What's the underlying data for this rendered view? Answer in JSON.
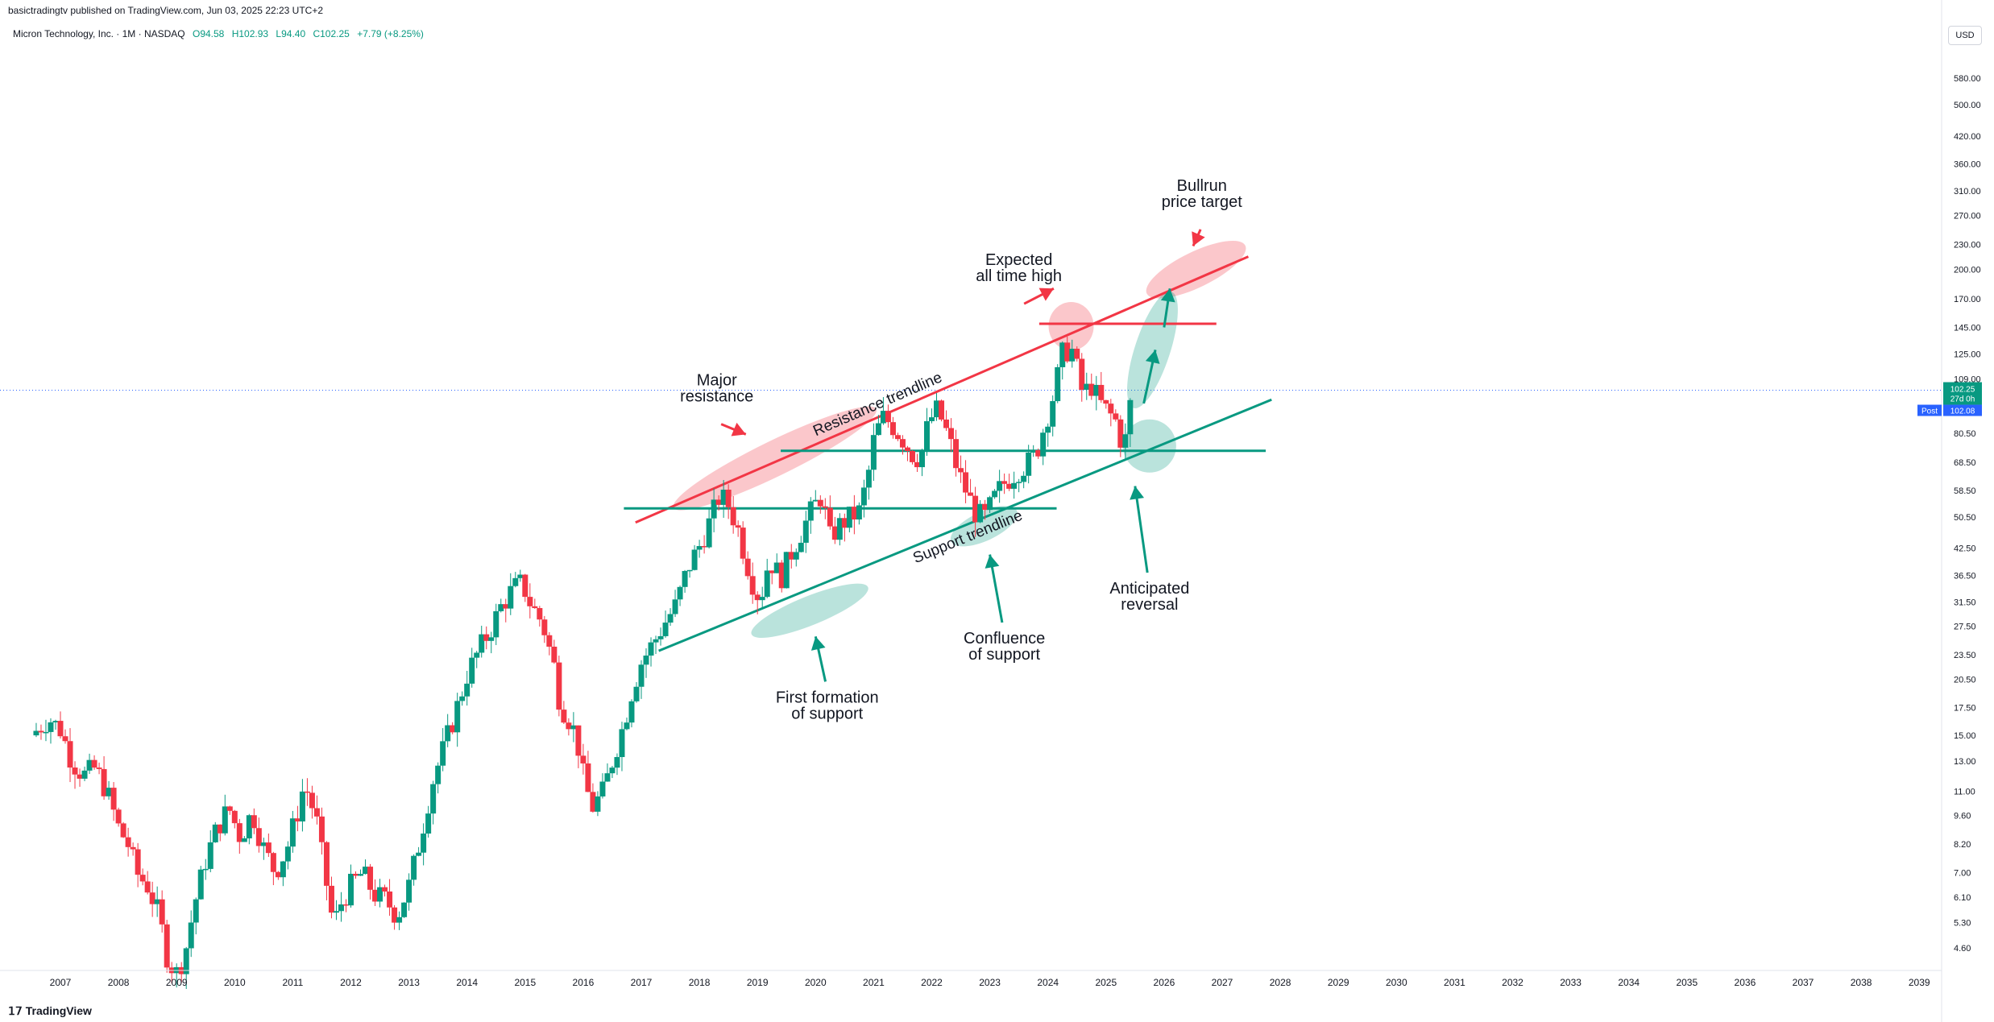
{
  "header": {
    "publisher": "basictradingtv published on TradingView.com, Jun 03, 2025 22:23 UTC+2",
    "symbol": "Micron Technology, Inc. · 1M · NASDAQ",
    "open": "O94.58",
    "high": "H102.93",
    "low": "L94.40",
    "close": "C102.25",
    "change": "+7.79 (+8.25%)"
  },
  "footer": {
    "logo": "TradingView"
  },
  "price_axis": {
    "currency": "USD",
    "current_price": "102.25",
    "countdown": "27d 0h",
    "post_label": "Post",
    "post_price": "102.08"
  },
  "colors": {
    "up": "#089981",
    "down": "#f23645",
    "resistance": "#f23645",
    "support": "#089981"
  },
  "chart_data": {
    "type": "candlestick",
    "symbol": "Micron Technology, Inc.",
    "interval": "1M",
    "exchange": "NASDAQ",
    "y_scale": "log",
    "y_tick_labels": [
      "580.00",
      "500.00",
      "420.00",
      "360.00",
      "310.00",
      "270.00",
      "230.00",
      "200.00",
      "170.00",
      "145.00",
      "125.00",
      "109.00",
      "80.50",
      "68.50",
      "58.50",
      "50.50",
      "42.50",
      "36.50",
      "31.50",
      "27.50",
      "23.50",
      "20.50",
      "17.50",
      "15.00",
      "13.00",
      "11.00",
      "9.60",
      "8.20",
      "7.00",
      "6.10",
      "5.30",
      "4.60"
    ],
    "x_tick_labels": [
      "2007",
      "2008",
      "2009",
      "2010",
      "2011",
      "2012",
      "2013",
      "2014",
      "2015",
      "2016",
      "2017",
      "2018",
      "2019",
      "2020",
      "2021",
      "2022",
      "2023",
      "2024",
      "2025",
      "2026",
      "2027",
      "2028",
      "2029",
      "2030",
      "2031",
      "2032",
      "2033",
      "2034",
      "2035",
      "2036",
      "2037",
      "2038",
      "2039"
    ],
    "price_path": [
      [
        2006.5,
        15.0
      ],
      [
        2006.8,
        16.5
      ],
      [
        2007.0,
        15.5
      ],
      [
        2007.2,
        13.0
      ],
      [
        2007.4,
        12.0
      ],
      [
        2007.6,
        12.5
      ],
      [
        2007.8,
        11.0
      ],
      [
        2008.0,
        9.0
      ],
      [
        2008.2,
        8.0
      ],
      [
        2008.3,
        7.0
      ],
      [
        2008.5,
        6.5
      ],
      [
        2008.7,
        5.5
      ],
      [
        2008.85,
        4.3
      ],
      [
        2009.0,
        4.0
      ],
      [
        2009.15,
        4.5
      ],
      [
        2009.3,
        5.8
      ],
      [
        2009.5,
        7.5
      ],
      [
        2009.7,
        9.0
      ],
      [
        2009.9,
        10.0
      ],
      [
        2010.1,
        8.5
      ],
      [
        2010.3,
        9.8
      ],
      [
        2010.5,
        8.0
      ],
      [
        2010.7,
        7.0
      ],
      [
        2010.9,
        8.0
      ],
      [
        2011.1,
        10.0
      ],
      [
        2011.2,
        11.5
      ],
      [
        2011.4,
        9.5
      ],
      [
        2011.55,
        7.0
      ],
      [
        2011.7,
        5.2
      ],
      [
        2011.85,
        6.0
      ],
      [
        2012.0,
        6.5
      ],
      [
        2012.2,
        7.0
      ],
      [
        2012.4,
        6.2
      ],
      [
        2012.6,
        6.0
      ],
      [
        2012.8,
        5.5
      ],
      [
        2013.0,
        6.5
      ],
      [
        2013.2,
        8.5
      ],
      [
        2013.4,
        11.5
      ],
      [
        2013.6,
        14.0
      ],
      [
        2013.8,
        17.0
      ],
      [
        2014.0,
        21.0
      ],
      [
        2014.2,
        24.0
      ],
      [
        2014.4,
        27.0
      ],
      [
        2014.6,
        31.0
      ],
      [
        2014.8,
        34.0
      ],
      [
        2014.95,
        35.0
      ],
      [
        2015.1,
        31.0
      ],
      [
        2015.3,
        28.0
      ],
      [
        2015.5,
        22.0
      ],
      [
        2015.6,
        18.0
      ],
      [
        2015.8,
        16.0
      ],
      [
        2015.9,
        14.5
      ],
      [
        2016.0,
        12.0
      ],
      [
        2016.15,
        10.0
      ],
      [
        2016.35,
        11.0
      ],
      [
        2016.5,
        13.0
      ],
      [
        2016.7,
        16.0
      ],
      [
        2016.85,
        19.5
      ],
      [
        2017.0,
        22.5
      ],
      [
        2017.2,
        25.0
      ],
      [
        2017.4,
        28.0
      ],
      [
        2017.6,
        31.0
      ],
      [
        2017.8,
        38.0
      ],
      [
        2018.0,
        43.0
      ],
      [
        2018.2,
        50.0
      ],
      [
        2018.35,
        57.0
      ],
      [
        2018.5,
        54.0
      ],
      [
        2018.65,
        48.0
      ],
      [
        2018.8,
        40.0
      ],
      [
        2018.95,
        34.0
      ],
      [
        2019.05,
        32.0
      ],
      [
        2019.2,
        40.0
      ],
      [
        2019.4,
        36.0
      ],
      [
        2019.6,
        42.0
      ],
      [
        2019.8,
        48.0
      ],
      [
        2019.95,
        53.0
      ],
      [
        2020.1,
        57.0
      ],
      [
        2020.25,
        45.0
      ],
      [
        2020.4,
        48.0
      ],
      [
        2020.55,
        50.0
      ],
      [
        2020.75,
        52.0
      ],
      [
        2020.9,
        63.0
      ],
      [
        2021.0,
        77.0
      ],
      [
        2021.15,
        88.0
      ],
      [
        2021.3,
        85.0
      ],
      [
        2021.5,
        78.0
      ],
      [
        2021.65,
        72.0
      ],
      [
        2021.8,
        70.0
      ],
      [
        2021.95,
        86.0
      ],
      [
        2022.1,
        92.0
      ],
      [
        2022.3,
        78.0
      ],
      [
        2022.45,
        65.0
      ],
      [
        2022.6,
        58.0
      ],
      [
        2022.75,
        52.0
      ],
      [
        2022.9,
        50.0
      ],
      [
        2023.05,
        55.0
      ],
      [
        2023.2,
        60.0
      ],
      [
        2023.35,
        63.0
      ],
      [
        2023.5,
        66.0
      ],
      [
        2023.65,
        68.0
      ],
      [
        2023.8,
        72.0
      ],
      [
        2023.95,
        85.0
      ],
      [
        2024.1,
        100.0
      ],
      [
        2024.25,
        125.0
      ],
      [
        2024.4,
        130.0
      ],
      [
        2024.5,
        115.0
      ],
      [
        2024.6,
        100.0
      ],
      [
        2024.75,
        105.0
      ],
      [
        2024.9,
        95.0
      ],
      [
        2025.05,
        90.0
      ],
      [
        2025.2,
        85.0
      ],
      [
        2025.3,
        72.0
      ],
      [
        2025.42,
        95.0
      ],
      [
        2025.45,
        102.25
      ]
    ],
    "lines": [
      {
        "label": "Resistance trendline",
        "from": [
          2016.9,
          49.0
        ],
        "to": [
          2027.45,
          215.0
        ]
      },
      {
        "label": "Support trendline",
        "from": [
          2017.3,
          24.0
        ],
        "to": [
          2027.85,
          97.0
        ]
      },
      {
        "label": "",
        "from": [
          2016.7,
          53.0
        ],
        "to": [
          2024.15,
          53.0
        ]
      },
      {
        "label": "",
        "from": [
          2019.4,
          73.0
        ],
        "to": [
          2027.75,
          73.0
        ]
      },
      {
        "label": "",
        "from": [
          2023.85,
          148.0
        ],
        "to": [
          2026.9,
          148.0
        ]
      }
    ],
    "annotations": [
      {
        "text": "Major\nresistance",
        "at": [
          2018.3,
          105.0
        ],
        "arrow_to": [
          2018.8,
          80.0
        ],
        "color": "#f23645"
      },
      {
        "text": "Expected\nall time high",
        "at": [
          2023.5,
          205.0
        ],
        "arrow_to": [
          2024.1,
          180.0
        ],
        "color": "#f23645"
      },
      {
        "text": "Bullrun\nprice target",
        "at": [
          2026.65,
          310.0
        ],
        "arrow_to": [
          2026.5,
          228.0
        ],
        "color": "#f23645"
      },
      {
        "text": "First formation\nof support",
        "at": [
          2020.2,
          18.0
        ],
        "arrow_to": [
          2020.0,
          26.0
        ],
        "color": "#089981"
      },
      {
        "text": "Confluence\nof support",
        "at": [
          2023.25,
          25.0
        ],
        "arrow_to": [
          2023.0,
          41.0
        ],
        "color": "#089981"
      },
      {
        "text": "Anticipated\nreversal",
        "at": [
          2025.75,
          33.0
        ],
        "arrow_to": [
          2025.5,
          60.0
        ],
        "color": "#089981"
      }
    ]
  }
}
